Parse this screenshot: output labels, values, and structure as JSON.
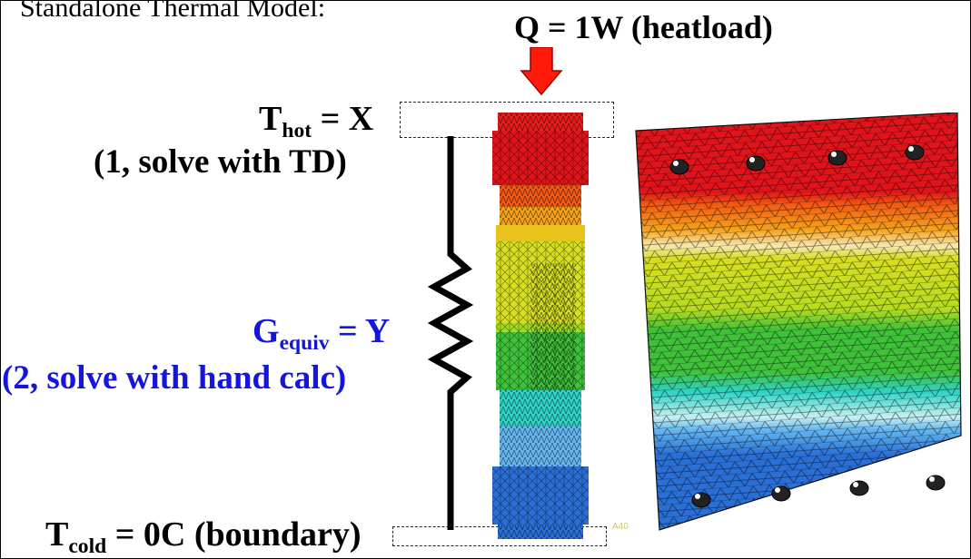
{
  "slide": {
    "title": "Standalone Thermal Model:",
    "heatload": "Q = 1W (heatload)",
    "hot": {
      "symbol": "T",
      "subscript": "hot",
      "value": " = X",
      "note": "(1, solve with TD)"
    },
    "conductance": {
      "symbol": "G",
      "subscript": "equiv",
      "value": " = Y",
      "note": "(2, solve with hand calc)"
    },
    "cold": {
      "symbol": "T",
      "subscript": "cold",
      "value": " = 0C (boundary)"
    },
    "tiny_label": "A40"
  },
  "colors": {
    "arrow": "#ff1a0a",
    "conductance_text": "#1515e0",
    "temperature_gradient": [
      "#e0141a",
      "#f25a12",
      "#f5a219",
      "#d8de20",
      "#a6dc1f",
      "#3fc23a",
      "#2fd3c8",
      "#64b8f0",
      "#2a6fd6"
    ]
  },
  "icons": {
    "heat_arrow": "down-arrow-icon",
    "resistor": "resistor-zigzag-icon"
  }
}
